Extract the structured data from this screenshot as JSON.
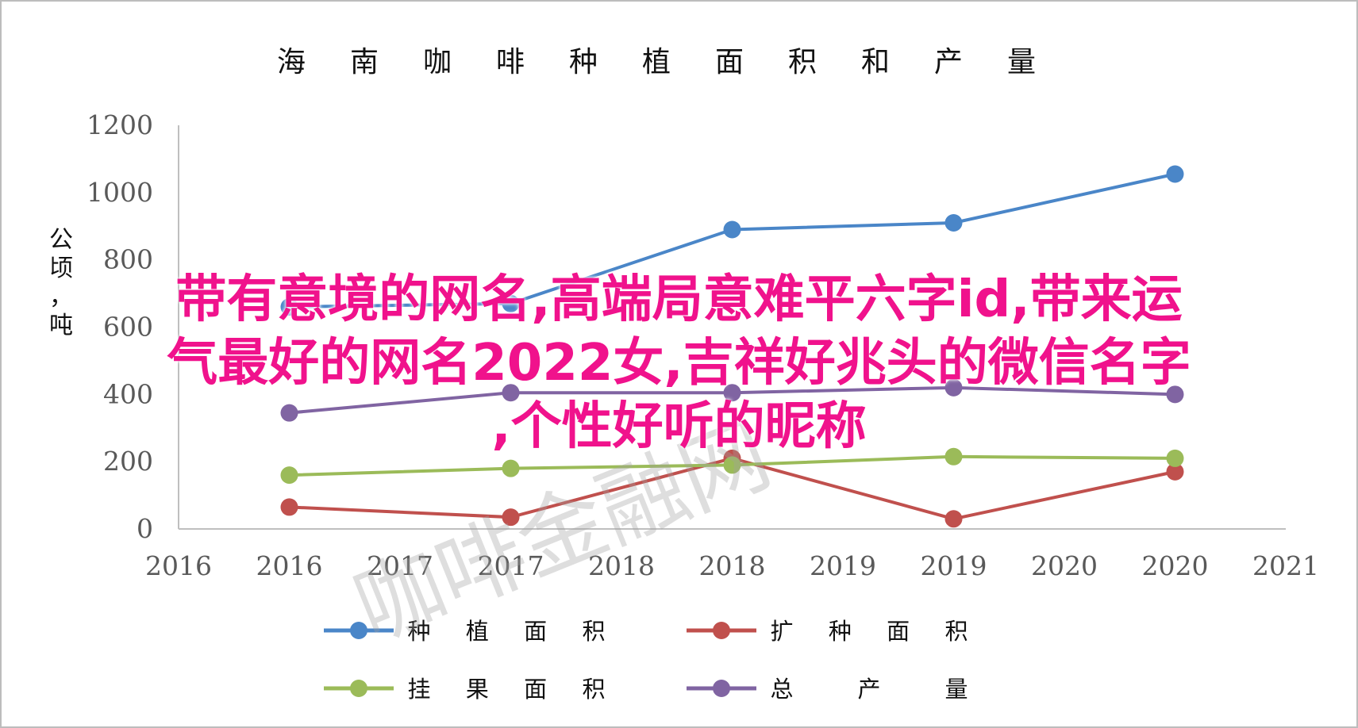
{
  "chart_data": {
    "type": "line",
    "title": "海南咖啡种植面积和产量",
    "ylabel": "公顷，吨",
    "x_ticks": [
      "2016",
      "2016",
      "2017",
      "2017",
      "2018",
      "2018",
      "2019",
      "2019",
      "2020",
      "2020",
      "2021"
    ],
    "ylim": [
      0,
      1200
    ],
    "y_ticks": [
      "0",
      "200",
      "400",
      "600",
      "800",
      "1000",
      "1200"
    ],
    "categories": [
      "2016",
      "2017",
      "2018",
      "2019",
      "2020"
    ],
    "series": [
      {
        "name": "种植面积",
        "color": "#4a86c8",
        "values": [
          660,
          670,
          890,
          910,
          1055
        ]
      },
      {
        "name": "扩种面积",
        "color": "#c0504d",
        "values": [
          65,
          35,
          210,
          30,
          170
        ]
      },
      {
        "name": "挂果面积",
        "color": "#9bbb59",
        "values": [
          160,
          180,
          190,
          215,
          210
        ]
      },
      {
        "name": "总产量",
        "color": "#8064a2",
        "values": [
          345,
          405,
          405,
          420,
          400
        ]
      }
    ],
    "grid": false,
    "legend_position": "bottom"
  },
  "overlay": {
    "line1": "带有意境的网名,高端局意难平六字id,带来运",
    "line2": "气最好的网名2022女,吉祥好兆头的微信名字",
    "line3": ",个性好听的昵称",
    "color": "#f0128c"
  },
  "watermark": "咖啡金融网"
}
